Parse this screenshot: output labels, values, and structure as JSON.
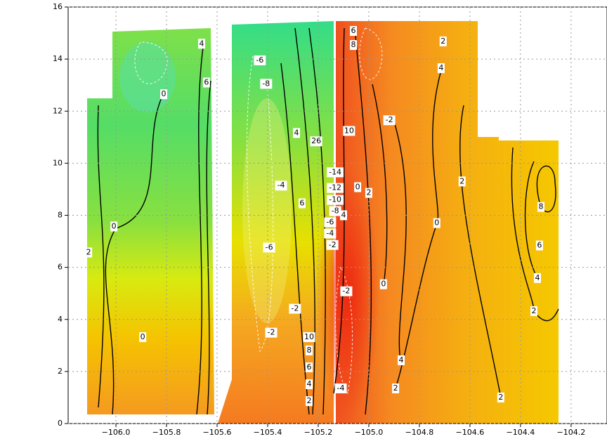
{
  "chart_data": {
    "type": "contour",
    "xlim": [
      -106.189,
      -104.058
    ],
    "ylim": [
      0,
      16
    ],
    "xticks": [
      {
        "value": -106.0,
        "label": "−106.0"
      },
      {
        "value": -105.8,
        "label": "−105.8"
      },
      {
        "value": -105.6,
        "label": "−105.6"
      },
      {
        "value": -105.4,
        "label": "−105.4"
      },
      {
        "value": -105.2,
        "label": "−105.2"
      },
      {
        "value": -105.0,
        "label": "−105.0"
      },
      {
        "value": -104.8,
        "label": "−104.8"
      },
      {
        "value": -104.6,
        "label": "−104.6"
      },
      {
        "value": -104.4,
        "label": "−104.4"
      },
      {
        "value": -104.2,
        "label": "−104.2"
      }
    ],
    "yticks": [
      0,
      2,
      4,
      6,
      8,
      10,
      12,
      14,
      16
    ],
    "grid": true,
    "contour_labels": [
      {
        "x": -105.661,
        "y": 14.59,
        "value": 4
      },
      {
        "x": -105.642,
        "y": 13.1,
        "value": 6
      },
      {
        "x": -105.811,
        "y": 12.65,
        "value": 0
      },
      {
        "x": -105.431,
        "y": 13.95,
        "value": -6
      },
      {
        "x": -105.406,
        "y": 13.05,
        "value": -8
      },
      {
        "x": -105.061,
        "y": 15.08,
        "value": 6
      },
      {
        "x": -105.061,
        "y": 14.54,
        "value": 8
      },
      {
        "x": -104.706,
        "y": 14.68,
        "value": 2
      },
      {
        "x": -104.714,
        "y": 13.65,
        "value": 4
      },
      {
        "x": -104.919,
        "y": 11.65,
        "value": -2
      },
      {
        "x": -105.078,
        "y": 11.24,
        "value": 10
      },
      {
        "x": -105.286,
        "y": 11.16,
        "value": 4
      },
      {
        "x": -105.208,
        "y": 10.84,
        "value": 26
      },
      {
        "x": -105.133,
        "y": 9.65,
        "value": -14
      },
      {
        "x": -105.133,
        "y": 9.05,
        "value": -12
      },
      {
        "x": -105.133,
        "y": 8.59,
        "value": -10
      },
      {
        "x": -105.133,
        "y": 8.16,
        "value": -8
      },
      {
        "x": -105.153,
        "y": 7.73,
        "value": -6
      },
      {
        "x": -105.153,
        "y": 7.3,
        "value": -4
      },
      {
        "x": -105.144,
        "y": 6.86,
        "value": -2
      },
      {
        "x": -105.1,
        "y": 8.0,
        "value": 4
      },
      {
        "x": -105.044,
        "y": 9.08,
        "value": 0
      },
      {
        "x": -105.0,
        "y": 8.86,
        "value": 2
      },
      {
        "x": -105.347,
        "y": 9.14,
        "value": -4
      },
      {
        "x": -105.264,
        "y": 8.46,
        "value": 6
      },
      {
        "x": -104.631,
        "y": 9.3,
        "value": 2
      },
      {
        "x": -104.731,
        "y": 7.7,
        "value": 0
      },
      {
        "x": -104.319,
        "y": 8.32,
        "value": 8
      },
      {
        "x": -104.325,
        "y": 6.84,
        "value": 6
      },
      {
        "x": -104.333,
        "y": 5.59,
        "value": 4
      },
      {
        "x": -104.347,
        "y": 4.32,
        "value": 2
      },
      {
        "x": -106.008,
        "y": 7.57,
        "value": 0
      },
      {
        "x": -106.108,
        "y": 6.57,
        "value": 2
      },
      {
        "x": -105.394,
        "y": 6.76,
        "value": -6
      },
      {
        "x": -104.942,
        "y": 5.35,
        "value": 0
      },
      {
        "x": -105.089,
        "y": 5.08,
        "value": -2
      },
      {
        "x": -105.292,
        "y": 4.41,
        "value": -2
      },
      {
        "x": -105.386,
        "y": 3.49,
        "value": -2
      },
      {
        "x": -105.894,
        "y": 3.32,
        "value": 0
      },
      {
        "x": -105.236,
        "y": 3.32,
        "value": 10
      },
      {
        "x": -105.236,
        "y": 2.81,
        "value": 8
      },
      {
        "x": -105.236,
        "y": 2.16,
        "value": 6
      },
      {
        "x": -105.236,
        "y": 1.51,
        "value": 4
      },
      {
        "x": -105.236,
        "y": 0.86,
        "value": 2
      },
      {
        "x": -105.111,
        "y": 1.35,
        "value": -4
      },
      {
        "x": -104.872,
        "y": 2.43,
        "value": 4
      },
      {
        "x": -104.894,
        "y": 1.35,
        "value": 2
      },
      {
        "x": -104.478,
        "y": 1.0,
        "value": 2
      }
    ]
  }
}
